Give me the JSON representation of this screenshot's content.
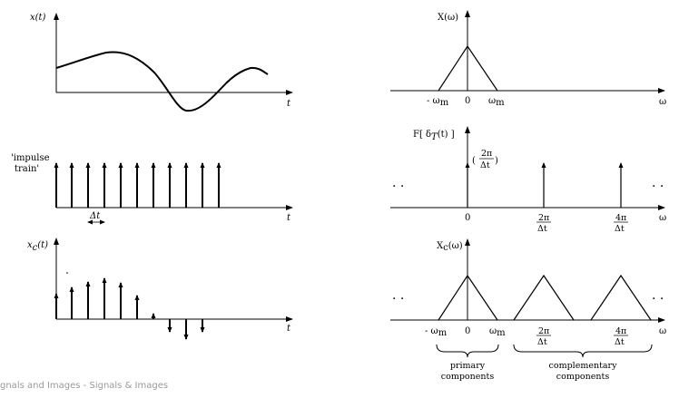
{
  "labels": {
    "x_t": "x(t)",
    "t": "t",
    "impulse_a": "'impulse",
    "impulse_b": "train'",
    "dt": "Δt",
    "xc_t": "x",
    "xc_sub": "c",
    "xc_tail": "(t)",
    "X_w": "X(ω)",
    "neg_wm": "- ω",
    "m": "m",
    "zero": "0",
    "wm": "ω",
    "w": "ω",
    "F_delta": "F[ δ",
    "F_sub": "T",
    "F_tail": "(t) ]",
    "two_pi": "2π",
    "four_pi": "4π",
    "over_dt": "Δt",
    "Xc_w": "X",
    "Xc_sub": "c",
    "Xc_tail": "(ω)",
    "dots": ". .",
    "primary_a": "primary",
    "primary_b": "components",
    "comp_a": "complementary",
    "comp_b": "components"
  },
  "footer": "gnals and Images - Signals & Images"
}
